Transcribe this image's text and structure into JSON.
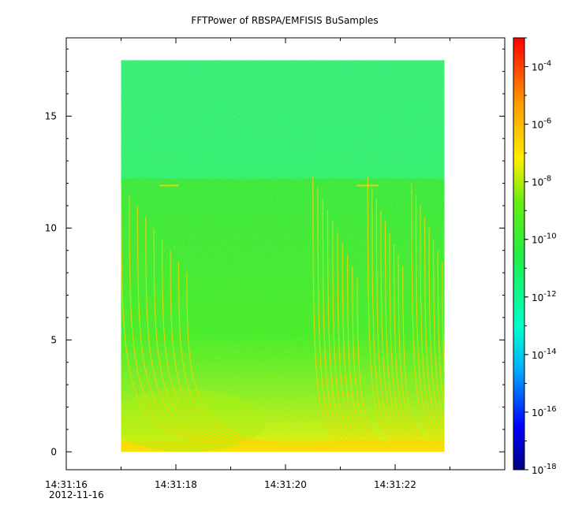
{
  "chart_data": {
    "type": "heatmap",
    "title": "FFTPower of RBSPA/EMFISIS  BuSamples",
    "x_axis": {
      "tick_labels": [
        "14:31:16",
        "14:31:18",
        "14:31:20",
        "14:31:22"
      ],
      "date_label": "2012-11-16",
      "range": [
        "14:31:16",
        "14:31:24"
      ]
    },
    "y_axis": {
      "ticks": [
        0,
        5,
        10,
        15
      ],
      "range": [
        -0.8,
        18.5
      ]
    },
    "data_extent": {
      "x": [
        "14:31:17",
        "14:31:22.9"
      ],
      "y": [
        0,
        17.5
      ]
    },
    "colorbar": {
      "scale": "log",
      "range": [
        "1e-18",
        "1e-3"
      ],
      "tick_exponents": [
        "-4",
        "-6",
        "-8",
        "-10",
        "-12",
        "-14",
        "-16",
        "-18"
      ],
      "tick_base": "10"
    },
    "colors": {
      "upper_band": "#22ee77",
      "middle_band": "#33ee22",
      "low_band": "#aaf010",
      "whistler_streaks": "#ffd000"
    }
  }
}
